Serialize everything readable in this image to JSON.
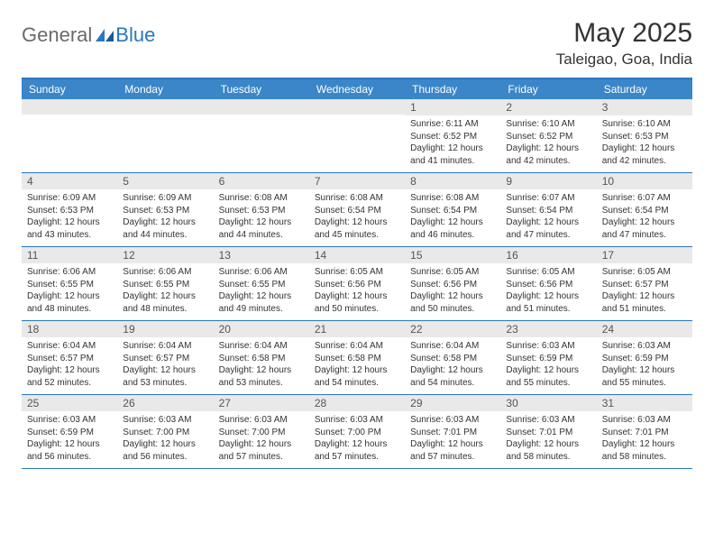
{
  "brand": {
    "text1": "General",
    "text2": "Blue"
  },
  "title": "May 2025",
  "location": "Taleigao, Goa, India",
  "colors": {
    "accent": "#2a77bd",
    "header_row": "#3a86c8",
    "daynum_bg": "#e9e9e9",
    "text": "#2a2a2a",
    "muted": "#6a6a6a"
  },
  "days_of_week": [
    "Sunday",
    "Monday",
    "Tuesday",
    "Wednesday",
    "Thursday",
    "Friday",
    "Saturday"
  ],
  "weeks": [
    [
      null,
      null,
      null,
      null,
      {
        "n": "1",
        "sunrise": "6:11 AM",
        "sunset": "6:52 PM",
        "daylight": "12 hours and 41 minutes."
      },
      {
        "n": "2",
        "sunrise": "6:10 AM",
        "sunset": "6:52 PM",
        "daylight": "12 hours and 42 minutes."
      },
      {
        "n": "3",
        "sunrise": "6:10 AM",
        "sunset": "6:53 PM",
        "daylight": "12 hours and 42 minutes."
      }
    ],
    [
      {
        "n": "4",
        "sunrise": "6:09 AM",
        "sunset": "6:53 PM",
        "daylight": "12 hours and 43 minutes."
      },
      {
        "n": "5",
        "sunrise": "6:09 AM",
        "sunset": "6:53 PM",
        "daylight": "12 hours and 44 minutes."
      },
      {
        "n": "6",
        "sunrise": "6:08 AM",
        "sunset": "6:53 PM",
        "daylight": "12 hours and 44 minutes."
      },
      {
        "n": "7",
        "sunrise": "6:08 AM",
        "sunset": "6:54 PM",
        "daylight": "12 hours and 45 minutes."
      },
      {
        "n": "8",
        "sunrise": "6:08 AM",
        "sunset": "6:54 PM",
        "daylight": "12 hours and 46 minutes."
      },
      {
        "n": "9",
        "sunrise": "6:07 AM",
        "sunset": "6:54 PM",
        "daylight": "12 hours and 47 minutes."
      },
      {
        "n": "10",
        "sunrise": "6:07 AM",
        "sunset": "6:54 PM",
        "daylight": "12 hours and 47 minutes."
      }
    ],
    [
      {
        "n": "11",
        "sunrise": "6:06 AM",
        "sunset": "6:55 PM",
        "daylight": "12 hours and 48 minutes."
      },
      {
        "n": "12",
        "sunrise": "6:06 AM",
        "sunset": "6:55 PM",
        "daylight": "12 hours and 48 minutes."
      },
      {
        "n": "13",
        "sunrise": "6:06 AM",
        "sunset": "6:55 PM",
        "daylight": "12 hours and 49 minutes."
      },
      {
        "n": "14",
        "sunrise": "6:05 AM",
        "sunset": "6:56 PM",
        "daylight": "12 hours and 50 minutes."
      },
      {
        "n": "15",
        "sunrise": "6:05 AM",
        "sunset": "6:56 PM",
        "daylight": "12 hours and 50 minutes."
      },
      {
        "n": "16",
        "sunrise": "6:05 AM",
        "sunset": "6:56 PM",
        "daylight": "12 hours and 51 minutes."
      },
      {
        "n": "17",
        "sunrise": "6:05 AM",
        "sunset": "6:57 PM",
        "daylight": "12 hours and 51 minutes."
      }
    ],
    [
      {
        "n": "18",
        "sunrise": "6:04 AM",
        "sunset": "6:57 PM",
        "daylight": "12 hours and 52 minutes."
      },
      {
        "n": "19",
        "sunrise": "6:04 AM",
        "sunset": "6:57 PM",
        "daylight": "12 hours and 53 minutes."
      },
      {
        "n": "20",
        "sunrise": "6:04 AM",
        "sunset": "6:58 PM",
        "daylight": "12 hours and 53 minutes."
      },
      {
        "n": "21",
        "sunrise": "6:04 AM",
        "sunset": "6:58 PM",
        "daylight": "12 hours and 54 minutes."
      },
      {
        "n": "22",
        "sunrise": "6:04 AM",
        "sunset": "6:58 PM",
        "daylight": "12 hours and 54 minutes."
      },
      {
        "n": "23",
        "sunrise": "6:03 AM",
        "sunset": "6:59 PM",
        "daylight": "12 hours and 55 minutes."
      },
      {
        "n": "24",
        "sunrise": "6:03 AM",
        "sunset": "6:59 PM",
        "daylight": "12 hours and 55 minutes."
      }
    ],
    [
      {
        "n": "25",
        "sunrise": "6:03 AM",
        "sunset": "6:59 PM",
        "daylight": "12 hours and 56 minutes."
      },
      {
        "n": "26",
        "sunrise": "6:03 AM",
        "sunset": "7:00 PM",
        "daylight": "12 hours and 56 minutes."
      },
      {
        "n": "27",
        "sunrise": "6:03 AM",
        "sunset": "7:00 PM",
        "daylight": "12 hours and 57 minutes."
      },
      {
        "n": "28",
        "sunrise": "6:03 AM",
        "sunset": "7:00 PM",
        "daylight": "12 hours and 57 minutes."
      },
      {
        "n": "29",
        "sunrise": "6:03 AM",
        "sunset": "7:01 PM",
        "daylight": "12 hours and 57 minutes."
      },
      {
        "n": "30",
        "sunrise": "6:03 AM",
        "sunset": "7:01 PM",
        "daylight": "12 hours and 58 minutes."
      },
      {
        "n": "31",
        "sunrise": "6:03 AM",
        "sunset": "7:01 PM",
        "daylight": "12 hours and 58 minutes."
      }
    ]
  ],
  "labels": {
    "sunrise": "Sunrise: ",
    "sunset": "Sunset: ",
    "daylight": "Daylight: "
  }
}
